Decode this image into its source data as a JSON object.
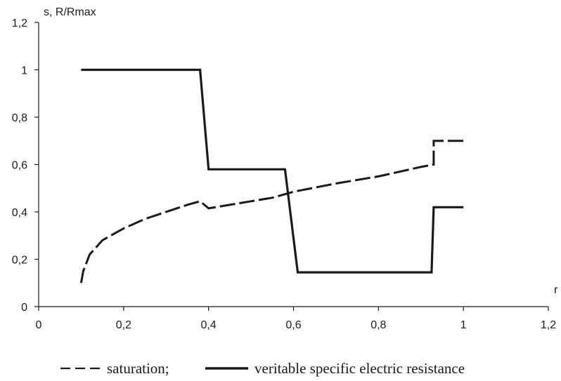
{
  "chart_data": {
    "type": "line",
    "ylabel": "s, R/Rmax",
    "xlabel": "r",
    "xlim": [
      0,
      1.2
    ],
    "ylim": [
      0,
      1.2
    ],
    "x_ticks": [
      "0",
      "0,2",
      "0,4",
      "0,6",
      "0,8",
      "1",
      "1,2"
    ],
    "y_ticks": [
      "0",
      "0,2",
      "0,4",
      "0,6",
      "0,8",
      "1",
      "1,2"
    ],
    "grid": false,
    "legend_position": "bottom",
    "series": [
      {
        "name": "saturation;",
        "style": "dashed",
        "color": "#1a1a1a",
        "points": [
          [
            0.1,
            0.1
          ],
          [
            0.105,
            0.15
          ],
          [
            0.12,
            0.22
          ],
          [
            0.15,
            0.28
          ],
          [
            0.2,
            0.33
          ],
          [
            0.25,
            0.37
          ],
          [
            0.3,
            0.4
          ],
          [
            0.35,
            0.43
          ],
          [
            0.38,
            0.445
          ],
          [
            0.4,
            0.415
          ],
          [
            0.45,
            0.43
          ],
          [
            0.5,
            0.445
          ],
          [
            0.55,
            0.46
          ],
          [
            0.6,
            0.485
          ],
          [
            0.7,
            0.52
          ],
          [
            0.8,
            0.55
          ],
          [
            0.9,
            0.59
          ],
          [
            0.93,
            0.6
          ],
          [
            0.93,
            0.7
          ],
          [
            1.0,
            0.7
          ]
        ]
      },
      {
        "name": "veritable specific electric resistance",
        "style": "solid",
        "color": "#1a1a1a",
        "points": [
          [
            0.1,
            1.0
          ],
          [
            0.38,
            1.0
          ],
          [
            0.4,
            0.58
          ],
          [
            0.58,
            0.58
          ],
          [
            0.61,
            0.145
          ],
          [
            0.925,
            0.145
          ],
          [
            0.93,
            0.42
          ],
          [
            1.0,
            0.42
          ]
        ]
      }
    ]
  }
}
